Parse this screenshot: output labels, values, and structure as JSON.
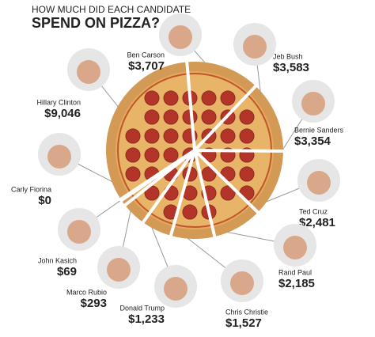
{
  "chart_data": {
    "type": "pie",
    "title": "HOW MUCH DID EACH CANDIDATE",
    "subtitle": "SPEND ON PIZZA?",
    "categories": [
      "Ben Carson",
      "Jeb Bush",
      "Bernie Sanders",
      "Ted Cruz",
      "Rand Paul",
      "Chris Christie",
      "Donald Trump",
      "Marco Rubio",
      "John Kasich",
      "Carly Fiorina",
      "Hillary Clinton"
    ],
    "values": [
      3707,
      3583,
      3354,
      2481,
      2185,
      1527,
      1233,
      293,
      69,
      0,
      9046
    ],
    "value_labels": [
      "$3,707",
      "$3,583",
      "$3,354",
      "$2,481",
      "$2,185",
      "$1,527",
      "$1,233",
      "$293",
      "$69",
      "$0",
      "$9,046"
    ]
  }
}
